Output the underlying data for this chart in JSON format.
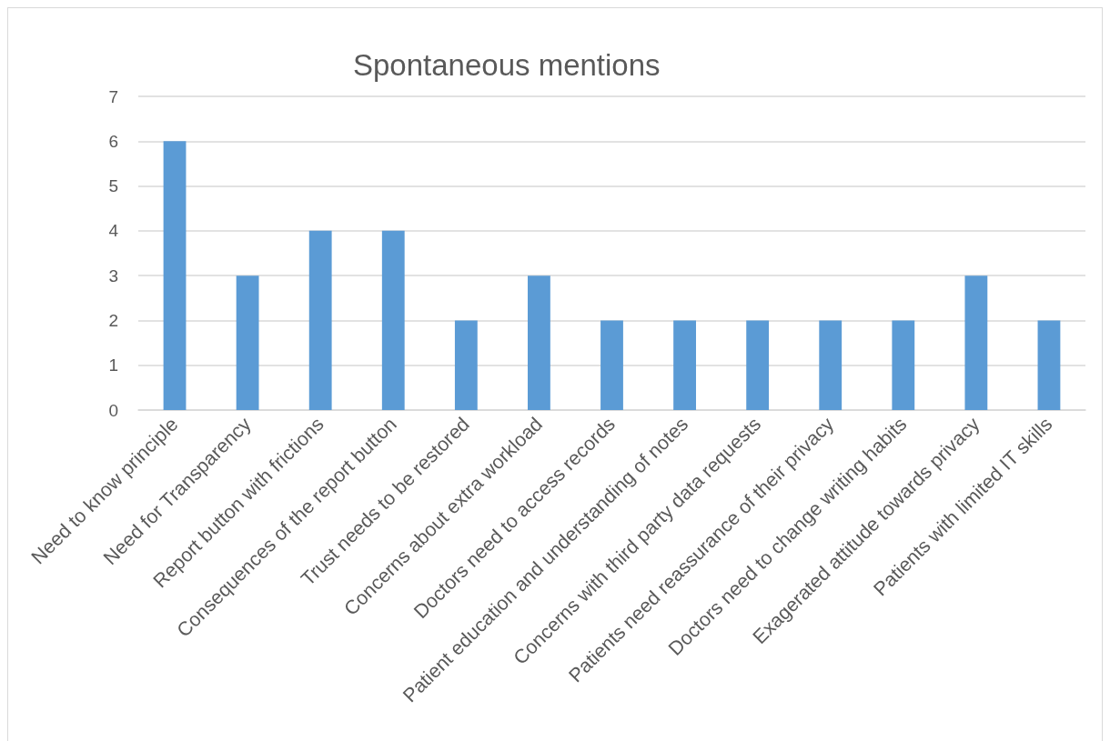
{
  "chart_data": {
    "type": "bar",
    "title": "Spontaneous mentions",
    "categories": [
      "Need to know principle",
      "Need for Transparency",
      "Report button with frictions",
      "Consequences of the report button",
      "Trust needs to be restored",
      "Concerns about extra workload",
      "Doctors need to access records",
      "Patient education and understanding of notes",
      "Concerns with third party data requests",
      "Patients need reassurance of their privacy",
      "Doctors need to change writing habits",
      "Exagerated attitude towards privacy",
      "Patients with limited IT skills"
    ],
    "values": [
      6,
      3,
      4,
      4,
      2,
      3,
      2,
      2,
      2,
      2,
      2,
      3,
      2
    ],
    "color": "#5b9bd5",
    "ylim": [
      0,
      7
    ],
    "yticks": [
      0,
      1,
      2,
      3,
      4,
      5,
      6,
      7
    ],
    "grid": "y"
  }
}
